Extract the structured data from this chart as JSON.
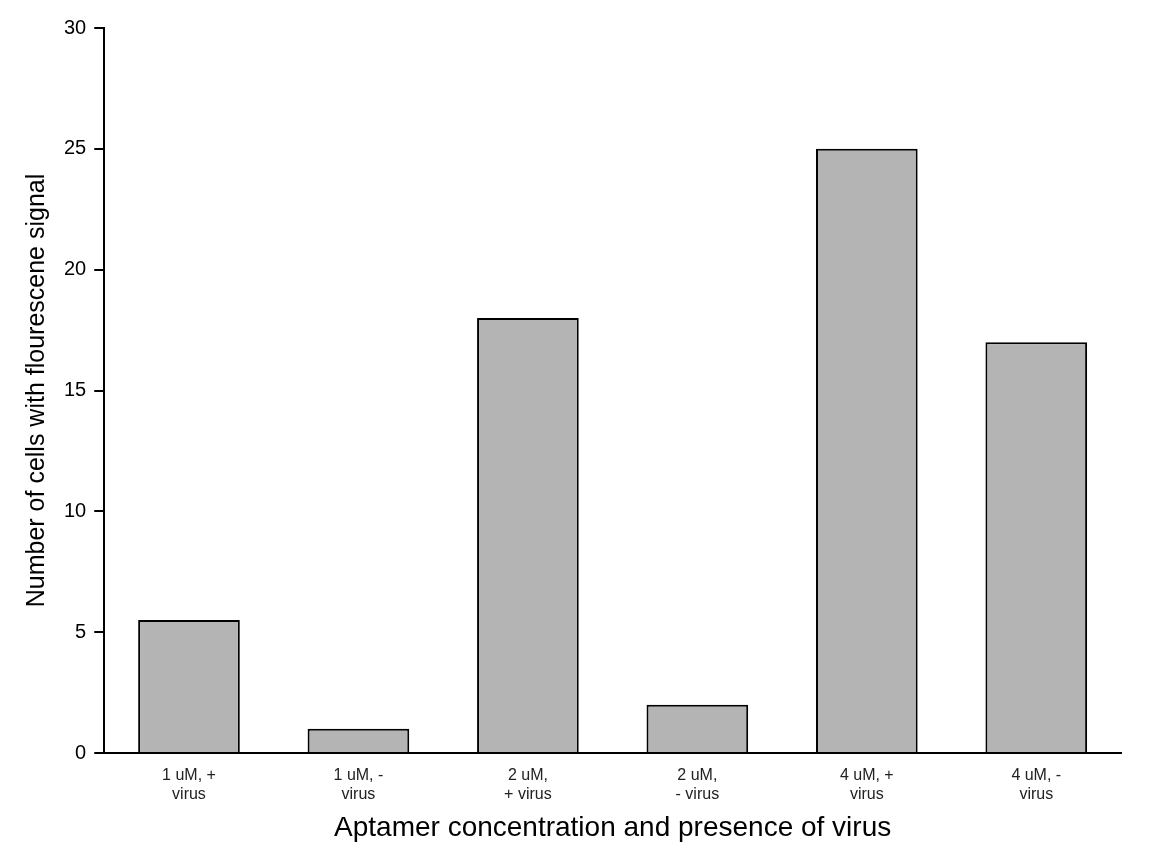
{
  "chart_data": {
    "type": "bar",
    "xlabel": "Aptamer concentration and presence of virus",
    "ylabel": "Number of cells with flourescene signal",
    "categories": [
      "1 uM, +\nvirus",
      "1 uM, -\nvirus",
      "2 uM,\n+ virus",
      "2 uM,\n- virus",
      "4 uM, +\nvirus",
      "4 uM, -\nvirus"
    ],
    "values": [
      5.5,
      1,
      18,
      2,
      25,
      17
    ],
    "color": "#b4b4b4",
    "ylim": [
      0,
      30
    ],
    "yticks": [
      0,
      5,
      10,
      15,
      20,
      25,
      30
    ],
    "grid": false,
    "legend": false
  }
}
